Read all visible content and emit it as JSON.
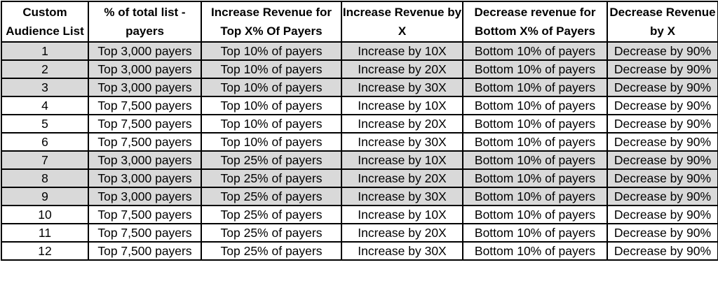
{
  "table": {
    "headers": [
      "Custom Audience List",
      "% of total list - payers",
      "Increase Revenue for Top X% Of Payers",
      "Increase Revenue by X",
      "Decrease revenue for Bottom X% of Payers",
      "Decrease Revenue by X"
    ],
    "rows": [
      {
        "cells": [
          "1",
          "Top 3,000 payers",
          "Top 10% of payers",
          "Increase by 10X",
          "Bottom 10% of payers",
          "Decrease by 90%"
        ],
        "shaded": true
      },
      {
        "cells": [
          "2",
          "Top 3,000 payers",
          "Top 10% of payers",
          "Increase by 20X",
          "Bottom 10% of payers",
          "Decrease by 90%"
        ],
        "shaded": true
      },
      {
        "cells": [
          "3",
          "Top 3,000 payers",
          "Top 10% of payers",
          "Increase by 30X",
          "Bottom 10% of payers",
          "Decrease by 90%"
        ],
        "shaded": true
      },
      {
        "cells": [
          "4",
          "Top 7,500 payers",
          "Top 10% of payers",
          "Increase by 10X",
          "Bottom 10% of payers",
          "Decrease by 90%"
        ],
        "shaded": false
      },
      {
        "cells": [
          "5",
          "Top 7,500 payers",
          "Top 10% of payers",
          "Increase by 20X",
          "Bottom 10% of payers",
          "Decrease by 90%"
        ],
        "shaded": false
      },
      {
        "cells": [
          "6",
          "Top 7,500 payers",
          "Top 10% of payers",
          "Increase by 30X",
          "Bottom 10% of payers",
          "Decrease by 90%"
        ],
        "shaded": false
      },
      {
        "cells": [
          "7",
          "Top 3,000 payers",
          "Top 25% of payers",
          "Increase by 10X",
          "Bottom 10% of payers",
          "Decrease by 90%"
        ],
        "shaded": true
      },
      {
        "cells": [
          "8",
          "Top 3,000 payers",
          "Top 25% of payers",
          "Increase by 20X",
          "Bottom 10% of payers",
          "Decrease by 90%"
        ],
        "shaded": true
      },
      {
        "cells": [
          "9",
          "Top 3,000 payers",
          "Top 25% of payers",
          "Increase by 30X",
          "Bottom 10% of payers",
          "Decrease by 90%"
        ],
        "shaded": true
      },
      {
        "cells": [
          "10",
          "Top 7,500 payers",
          "Top 25% of payers",
          "Increase by 10X",
          "Bottom 10% of payers",
          "Decrease by 90%"
        ],
        "shaded": false
      },
      {
        "cells": [
          "11",
          "Top 7,500 payers",
          "Top 25% of payers",
          "Increase by 20X",
          "Bottom 10% of payers",
          "Decrease by 90%"
        ],
        "shaded": false
      },
      {
        "cells": [
          "12",
          "Top 7,500 payers",
          "Top 25% of payers",
          "Increase by 30X",
          "Bottom 10% of payers",
          "Decrease by 90%"
        ],
        "shaded": false
      }
    ]
  },
  "colors": {
    "shaded_row": "#d9d9d9",
    "plain_row": "#ffffff",
    "border": "#000000"
  }
}
